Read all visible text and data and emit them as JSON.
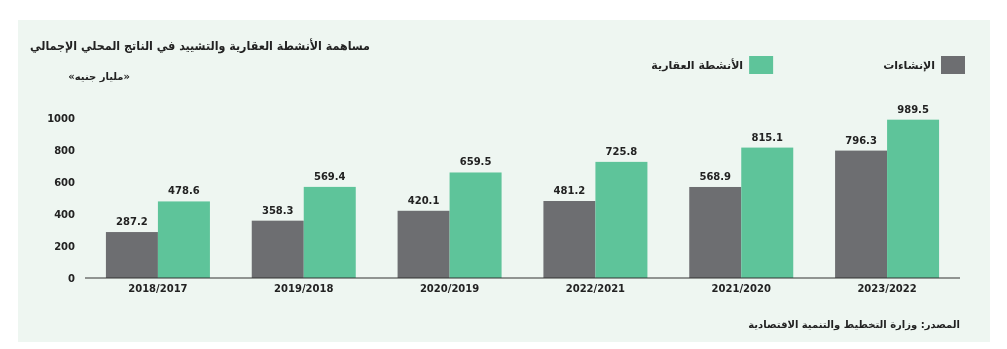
{
  "chart_data": {
    "type": "bar",
    "title": "مساهمة الأنشطة العقارية والتشييد في الناتج المحلي الإجمالي",
    "subtitle": "«مليار جنيه»",
    "categories": [
      "2018/2017",
      "2019/2018",
      "2020/2019",
      "2022/2021",
      "2021/2020",
      "2023/2022"
    ],
    "series": [
      {
        "name": "الإنشاءات",
        "color": "#6d6e71",
        "values": [
          287.2,
          358.3,
          420.1,
          481.2,
          568.9,
          796.3
        ]
      },
      {
        "name": "الأنشطة العقارية",
        "color": "#5ec49a",
        "values": [
          478.6,
          569.4,
          659.5,
          725.8,
          815.1,
          989.5
        ]
      }
    ],
    "ylim": [
      0,
      1000
    ],
    "yticks": [
      0,
      200,
      400,
      600,
      800,
      1000
    ],
    "grid": false,
    "legend": "top right",
    "data_labels": true,
    "annotations": [
      "المصدر: وزارة التخطيط والتنمية الاقتصادية"
    ]
  }
}
